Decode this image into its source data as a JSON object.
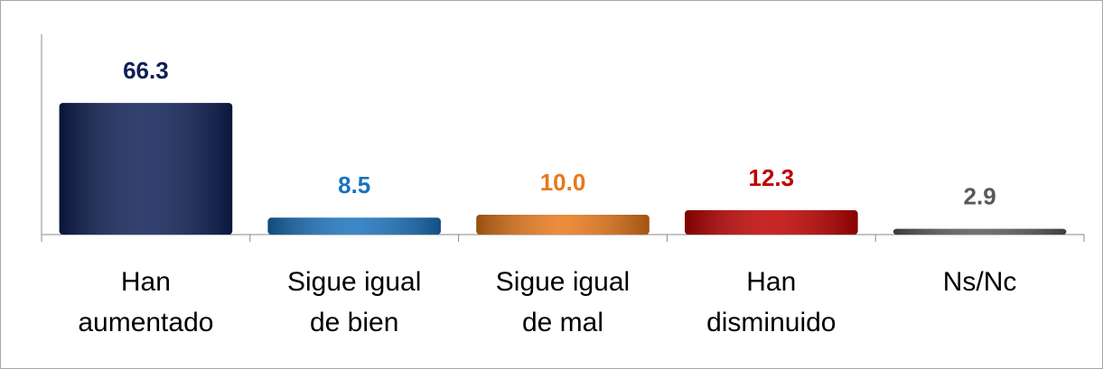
{
  "chart_data": {
    "type": "bar",
    "categories": [
      "Han aumentado",
      "Sigue igual de bien",
      "Sigue igual de mal",
      "Han disminuido",
      "Ns/Nc"
    ],
    "values": [
      66.3,
      8.5,
      10,
      12.3,
      2.9
    ],
    "value_labels": [
      "66.3",
      "8.5",
      "10.0",
      "12.3",
      "2.9"
    ],
    "colors": [
      "#0d1f55",
      "#1a72bd",
      "#e8781a",
      "#c00000",
      "#595959"
    ],
    "ylim": [
      0,
      100
    ]
  }
}
